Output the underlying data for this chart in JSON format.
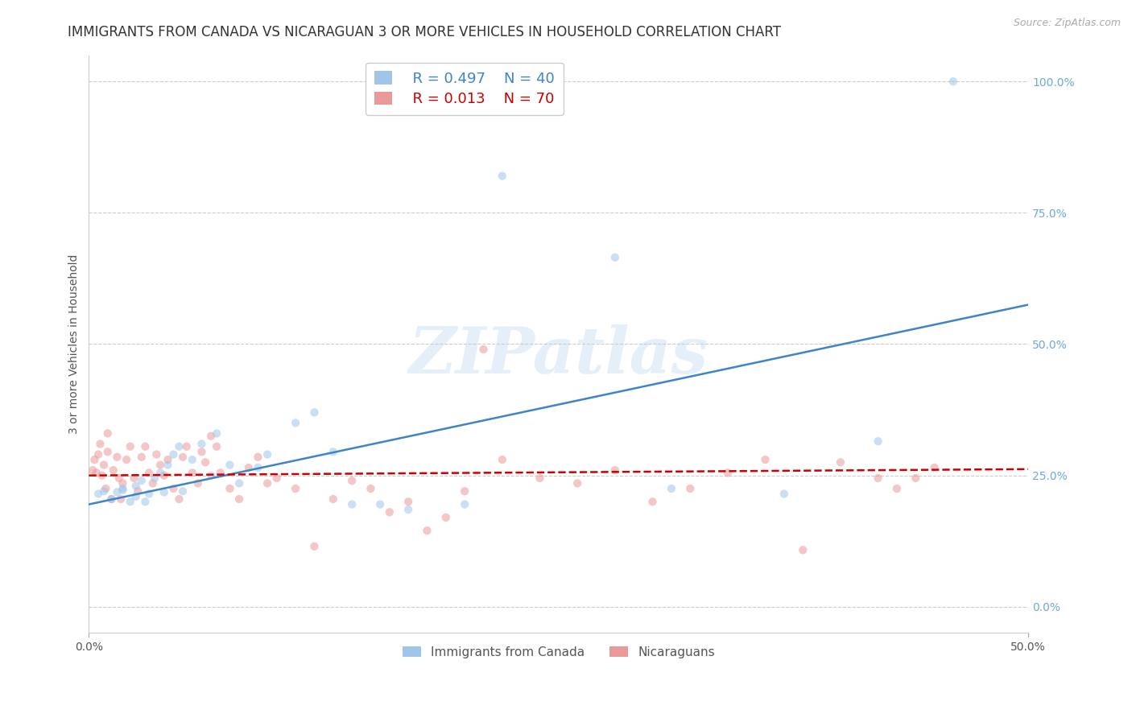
{
  "title": "IMMIGRANTS FROM CANADA VS NICARAGUAN 3 OR MORE VEHICLES IN HOUSEHOLD CORRELATION CHART",
  "source": "Source: ZipAtlas.com",
  "ylabel": "3 or more Vehicles in Household",
  "legend_blue_R": "R = 0.497",
  "legend_blue_N": "N = 40",
  "legend_pink_R": "R = 0.013",
  "legend_pink_N": "N = 70",
  "legend_label_blue": "Immigrants from Canada",
  "legend_label_pink": "Nicaraguans",
  "xlim": [
    0.0,
    0.5
  ],
  "ylim": [
    -0.05,
    1.05
  ],
  "yticks_right": [
    0.0,
    0.25,
    0.5,
    0.75,
    1.0
  ],
  "ytick_labels_right": [
    "0.0%",
    "25.0%",
    "50.0%",
    "75.0%",
    "100.0%"
  ],
  "xticks": [
    0.0,
    0.5
  ],
  "xtick_labels": [
    "0.0%",
    "50.0%"
  ],
  "blue_scatter_x": [
    0.005,
    0.008,
    0.012,
    0.015,
    0.018,
    0.018,
    0.022,
    0.025,
    0.025,
    0.028,
    0.03,
    0.032,
    0.035,
    0.038,
    0.04,
    0.042,
    0.045,
    0.048,
    0.05,
    0.055,
    0.06,
    0.065,
    0.068,
    0.075,
    0.08,
    0.09,
    0.095,
    0.11,
    0.12,
    0.13,
    0.14,
    0.155,
    0.17,
    0.2,
    0.22,
    0.28,
    0.31,
    0.37,
    0.42,
    0.46
  ],
  "blue_scatter_y": [
    0.215,
    0.22,
    0.205,
    0.218,
    0.222,
    0.225,
    0.2,
    0.21,
    0.23,
    0.24,
    0.2,
    0.215,
    0.245,
    0.255,
    0.218,
    0.27,
    0.29,
    0.305,
    0.22,
    0.28,
    0.31,
    0.25,
    0.33,
    0.27,
    0.235,
    0.265,
    0.29,
    0.35,
    0.37,
    0.295,
    0.195,
    0.195,
    0.185,
    0.195,
    0.82,
    0.665,
    0.225,
    0.215,
    0.315,
    1.0
  ],
  "pink_scatter_x": [
    0.002,
    0.003,
    0.004,
    0.005,
    0.006,
    0.007,
    0.008,
    0.009,
    0.01,
    0.01,
    0.012,
    0.013,
    0.015,
    0.016,
    0.017,
    0.018,
    0.02,
    0.022,
    0.024,
    0.026,
    0.028,
    0.03,
    0.032,
    0.034,
    0.036,
    0.038,
    0.04,
    0.042,
    0.045,
    0.048,
    0.05,
    0.052,
    0.055,
    0.058,
    0.06,
    0.062,
    0.065,
    0.068,
    0.07,
    0.075,
    0.08,
    0.085,
    0.09,
    0.095,
    0.1,
    0.11,
    0.12,
    0.13,
    0.14,
    0.15,
    0.16,
    0.17,
    0.18,
    0.19,
    0.2,
    0.21,
    0.22,
    0.24,
    0.26,
    0.28,
    0.3,
    0.32,
    0.34,
    0.36,
    0.38,
    0.4,
    0.42,
    0.43,
    0.44,
    0.45
  ],
  "pink_scatter_y": [
    0.26,
    0.28,
    0.255,
    0.29,
    0.31,
    0.25,
    0.27,
    0.225,
    0.295,
    0.33,
    0.205,
    0.26,
    0.285,
    0.245,
    0.205,
    0.235,
    0.28,
    0.305,
    0.245,
    0.22,
    0.285,
    0.305,
    0.255,
    0.235,
    0.29,
    0.27,
    0.25,
    0.28,
    0.225,
    0.205,
    0.285,
    0.305,
    0.255,
    0.235,
    0.295,
    0.275,
    0.325,
    0.305,
    0.255,
    0.225,
    0.205,
    0.265,
    0.285,
    0.235,
    0.245,
    0.225,
    0.115,
    0.205,
    0.24,
    0.225,
    0.18,
    0.2,
    0.145,
    0.17,
    0.22,
    0.49,
    0.28,
    0.245,
    0.235,
    0.26,
    0.2,
    0.225,
    0.255,
    0.28,
    0.108,
    0.275,
    0.245,
    0.225,
    0.245,
    0.265
  ],
  "blue_line_x": [
    0.0,
    0.5
  ],
  "blue_line_y": [
    0.195,
    0.575
  ],
  "pink_line_x": [
    0.0,
    0.5
  ],
  "pink_line_y": [
    0.25,
    0.262
  ],
  "blue_color": "#9fc5e8",
  "pink_color": "#ea9999",
  "blue_line_color": "#3d85c8",
  "pink_line_color": "#cc0000",
  "watermark_text": "ZIPatlas",
  "background_color": "#ffffff",
  "grid_color": "#cccccc",
  "right_tick_color": "#6fa8dc",
  "title_fontsize": 12,
  "axis_label_fontsize": 10,
  "tick_fontsize": 10,
  "scatter_size": 55,
  "scatter_alpha": 0.55,
  "line_width": 1.8
}
